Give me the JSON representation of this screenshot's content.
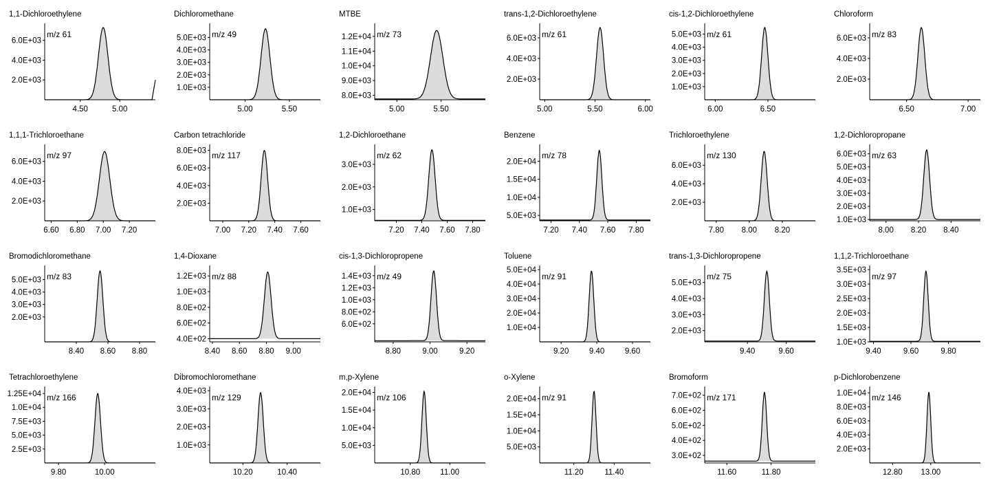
{
  "colors": {
    "peak_fill": "#dcdcdc",
    "line": "#000000",
    "baseline_fill": "#c8c8c8"
  },
  "chart_data": [
    {
      "type": "line",
      "title": "1,1-Dichloroethylene",
      "ion": "m/z 61",
      "xlim": [
        4.05,
        5.45
      ],
      "ylim": [
        0,
        7300
      ],
      "x_ticks": [
        "4.50",
        "5.00"
      ],
      "x_tick_values": [
        4.5,
        5.0
      ],
      "y_ticks": [
        "2.0E+03",
        "4.0E+03",
        "6.0E+03"
      ],
      "y_tick_values": [
        2000,
        4000,
        6000
      ],
      "peaks": [
        {
          "rt": 4.79,
          "height": 7300,
          "width": 0.06,
          "filled": true
        }
      ],
      "baseline": 0,
      "end_rise": 2000
    },
    {
      "type": "line",
      "title": "Dichloromethane",
      "ion": "m/z 49",
      "xlim": [
        4.6,
        5.85
      ],
      "ylim": [
        0,
        5800
      ],
      "x_ticks": [
        "5.00",
        "5.50"
      ],
      "x_tick_values": [
        5.0,
        5.5
      ],
      "y_ticks": [
        "1.0E+03",
        "2.0E+03",
        "3.0E+03",
        "4.0E+03",
        "5.0E+03"
      ],
      "y_tick_values": [
        1000,
        2000,
        3000,
        4000,
        5000
      ],
      "peaks": [
        {
          "rt": 5.23,
          "height": 5700,
          "width": 0.05,
          "filled": true
        }
      ],
      "baseline": 0
    },
    {
      "type": "line",
      "title": "MTBE",
      "ion": "m/z 73",
      "xlim": [
        4.75,
        6.0
      ],
      "ylim": [
        7700,
        12600
      ],
      "x_ticks": [
        "5.00",
        "5.50"
      ],
      "x_tick_values": [
        5.0,
        5.5
      ],
      "y_ticks": [
        "8.0E+03",
        "9.0E+03",
        "1.0E+04",
        "1.1E+04",
        "1.2E+04"
      ],
      "y_tick_values": [
        8000,
        9000,
        10000,
        11000,
        12000
      ],
      "peaks": [
        {
          "rt": 5.45,
          "height": 12400,
          "width": 0.07,
          "filled": true
        }
      ],
      "baseline": 7750
    },
    {
      "type": "line",
      "title": "trans-1,2-Dichloroethylene",
      "ion": "m/z 61",
      "xlim": [
        4.95,
        6.05
      ],
      "ylim": [
        0,
        7000
      ],
      "x_ticks": [
        "5.00",
        "5.50",
        "6.00"
      ],
      "x_tick_values": [
        5.0,
        5.5,
        6.0
      ],
      "y_ticks": [
        "2.0E+03",
        "4.0E+03",
        "6.0E+03"
      ],
      "y_tick_values": [
        2000,
        4000,
        6000
      ],
      "peaks": [
        {
          "rt": 5.55,
          "height": 7000,
          "width": 0.035,
          "filled": true
        }
      ],
      "baseline": 0
    },
    {
      "type": "line",
      "title": "cis-1,2-Dichloroethylene",
      "ion": "m/z 61",
      "xlim": [
        5.9,
        6.95
      ],
      "ylim": [
        0,
        5500
      ],
      "x_ticks": [
        "6.00",
        "6.50"
      ],
      "x_tick_values": [
        6.0,
        6.5
      ],
      "y_ticks": [
        "1.0E+03",
        "2.0E+03",
        "3.0E+03",
        "4.0E+03",
        "5.0E+03"
      ],
      "y_tick_values": [
        1000,
        2000,
        3000,
        4000,
        5000
      ],
      "peaks": [
        {
          "rt": 6.47,
          "height": 5500,
          "width": 0.03,
          "filled": true
        }
      ],
      "baseline": 0
    },
    {
      "type": "line",
      "title": "Chloroform",
      "ion": "m/z 83",
      "xlim": [
        6.2,
        7.1
      ],
      "ylim": [
        0,
        7000
      ],
      "x_ticks": [
        "6.50",
        "7.00"
      ],
      "x_tick_values": [
        6.5,
        7.0
      ],
      "y_ticks": [
        "2.0E+03",
        "4.0E+03",
        "6.0E+03"
      ],
      "y_tick_values": [
        2000,
        4000,
        6000
      ],
      "peaks": [
        {
          "rt": 6.62,
          "height": 7000,
          "width": 0.028,
          "filled": true
        }
      ],
      "baseline": 0
    },
    {
      "type": "line",
      "title": "1,1,1-Trichloroethane",
      "ion": "m/z 97",
      "xlim": [
        6.55,
        7.4
      ],
      "ylim": [
        0,
        7300
      ],
      "x_ticks": [
        "6.60",
        "6.80",
        "7.00",
        "7.20"
      ],
      "x_tick_values": [
        6.6,
        6.8,
        7.0,
        7.2
      ],
      "y_ticks": [
        "2.0E+03",
        "4.0E+03",
        "6.0E+03"
      ],
      "y_tick_values": [
        2000,
        4000,
        6000
      ],
      "peaks": [
        {
          "rt": 7.01,
          "height": 7000,
          "width": 0.04,
          "filled": true
        }
      ],
      "baseline": 0
    },
    {
      "type": "line",
      "title": "Carbon tetrachloride",
      "ion": "m/z 117",
      "xlim": [
        6.9,
        7.75
      ],
      "ylim": [
        0,
        8200
      ],
      "x_ticks": [
        "7.00",
        "7.20",
        "7.40",
        "7.60"
      ],
      "x_tick_values": [
        7.0,
        7.2,
        7.4,
        7.6
      ],
      "y_ticks": [
        "2.0E+03",
        "4.0E+03",
        "6.0E+03",
        "8.0E+03"
      ],
      "y_tick_values": [
        2000,
        4000,
        6000,
        8000
      ],
      "peaks": [
        {
          "rt": 7.32,
          "height": 8000,
          "width": 0.025,
          "filled": true
        }
      ],
      "baseline": 0
    },
    {
      "type": "line",
      "title": "1,2-Dichloroethane",
      "ion": "m/z 62",
      "xlim": [
        7.03,
        7.9
      ],
      "ylim": [
        500,
        3700
      ],
      "x_ticks": [
        "7.20",
        "7.40",
        "7.60",
        "7.80"
      ],
      "x_tick_values": [
        7.2,
        7.4,
        7.6,
        7.8
      ],
      "y_ticks": [
        "1.0E+03",
        "2.0E+03",
        "3.0E+03"
      ],
      "y_tick_values": [
        1000,
        2000,
        3000
      ],
      "peaks": [
        {
          "rt": 7.48,
          "height": 3650,
          "width": 0.025,
          "filled": true
        }
      ],
      "baseline": 520
    },
    {
      "type": "line",
      "title": "Benzene",
      "ion": "m/z 78",
      "xlim": [
        7.12,
        7.9
      ],
      "ylim": [
        3500,
        23500
      ],
      "x_ticks": [
        "7.20",
        "7.40",
        "7.60",
        "7.80"
      ],
      "x_tick_values": [
        7.2,
        7.4,
        7.6,
        7.8
      ],
      "y_ticks": [
        "5.0E+03",
        "1.0E+04",
        "1.5E+04",
        "2.0E+04"
      ],
      "y_tick_values": [
        5000,
        10000,
        15000,
        20000
      ],
      "peaks": [
        {
          "rt": 7.54,
          "height": 23000,
          "width": 0.018,
          "filled": true
        }
      ],
      "baseline": 3700
    },
    {
      "type": "line",
      "title": "Trichloroethylene",
      "ion": "m/z 130",
      "xlim": [
        7.73,
        8.4
      ],
      "ylim": [
        0,
        7800
      ],
      "x_ticks": [
        "7.80",
        "8.00",
        "8.20"
      ],
      "x_tick_values": [
        7.8,
        8.0,
        8.2
      ],
      "y_ticks": [
        "2.0E+03",
        "4.0E+03",
        "6.0E+03"
      ],
      "y_tick_values": [
        2000,
        4000,
        6000
      ],
      "peaks": [
        {
          "rt": 8.09,
          "height": 7500,
          "width": 0.018,
          "filled": true
        }
      ],
      "baseline": 0
    },
    {
      "type": "line",
      "title": "1,2-Dichloropropane",
      "ion": "m/z 63",
      "xlim": [
        7.9,
        8.58
      ],
      "ylim": [
        900,
        6400
      ],
      "x_ticks": [
        "8.00",
        "8.20",
        "8.40"
      ],
      "x_tick_values": [
        8.0,
        8.2,
        8.4
      ],
      "y_ticks": [
        "1.0E+03",
        "2.0E+03",
        "3.0E+03",
        "4.0E+03",
        "5.0E+03",
        "6.0E+03"
      ],
      "y_tick_values": [
        1000,
        2000,
        3000,
        4000,
        5000,
        6000
      ],
      "peaks": [
        {
          "rt": 8.25,
          "height": 6300,
          "width": 0.018,
          "filled": true
        }
      ],
      "baseline": 1000
    },
    {
      "type": "line",
      "title": "Bromodichloromethane",
      "ion": "m/z 83",
      "xlim": [
        8.2,
        8.9
      ],
      "ylim": [
        0,
        5800
      ],
      "x_ticks": [
        "8.40",
        "8.60",
        "8.80"
      ],
      "x_tick_values": [
        8.4,
        8.6,
        8.8
      ],
      "y_ticks": [
        "2.0E+03",
        "3.0E+03",
        "4.0E+03",
        "5.0E+03"
      ],
      "y_tick_values": [
        2000,
        3000,
        4000,
        5000
      ],
      "peaks": [
        {
          "rt": 8.55,
          "height": 5700,
          "width": 0.018,
          "filled": true
        }
      ],
      "baseline": 0
    },
    {
      "type": "line",
      "title": "1,4-Dioxane",
      "ion": "m/z 88",
      "xlim": [
        8.38,
        9.2
      ],
      "ylim": [
        360,
        1280
      ],
      "x_ticks": [
        "8.40",
        "8.60",
        "8.80",
        "9.00"
      ],
      "x_tick_values": [
        8.4,
        8.6,
        8.8,
        9.0
      ],
      "y_ticks": [
        "4.0E+02",
        "6.0E+02",
        "8.0E+02",
        "1.0E+03",
        "1.2E+03"
      ],
      "y_tick_values": [
        400,
        600,
        800,
        1000,
        1200
      ],
      "peaks": [
        {
          "rt": 8.81,
          "height": 1250,
          "width": 0.025,
          "filled": true
        }
      ],
      "baseline": 400
    },
    {
      "type": "line",
      "title": "cis-1,3-Dichloropropene",
      "ion": "m/z 49",
      "xlim": [
        8.7,
        9.3
      ],
      "ylim": [
        300,
        1500
      ],
      "x_ticks": [
        "8.80",
        "9.00",
        "9.20"
      ],
      "x_tick_values": [
        8.8,
        9.0,
        9.2
      ],
      "y_ticks": [
        "6.0E+02",
        "8.0E+02",
        "1.0E+03",
        "1.2E+03",
        "1.4E+03"
      ],
      "y_tick_values": [
        600,
        800,
        1000,
        1200,
        1400
      ],
      "peaks": [
        {
          "rt": 9.02,
          "height": 1480,
          "width": 0.015,
          "filled": true
        }
      ],
      "baseline": 320
    },
    {
      "type": "line",
      "title": "Toluene",
      "ion": "m/z 91",
      "xlim": [
        9.08,
        9.7
      ],
      "ylim": [
        0,
        50000
      ],
      "x_ticks": [
        "9.20",
        "9.40",
        "9.60"
      ],
      "x_tick_values": [
        9.2,
        9.4,
        9.6
      ],
      "y_ticks": [
        "1.0E+04",
        "2.0E+04",
        "3.0E+04",
        "4.0E+04",
        "5.0E+04"
      ],
      "y_tick_values": [
        10000,
        20000,
        30000,
        40000,
        50000
      ],
      "peaks": [
        {
          "rt": 9.37,
          "height": 49000,
          "width": 0.013,
          "filled": true
        }
      ],
      "baseline": 0
    },
    {
      "type": "line",
      "title": "trans-1,3-Dichloropropene",
      "ion": "m/z 75",
      "xlim": [
        9.18,
        9.75
      ],
      "ylim": [
        1300,
        5800
      ],
      "x_ticks": [
        "9.40",
        "9.60"
      ],
      "x_tick_values": [
        9.4,
        9.6
      ],
      "y_ticks": [
        "2.0E+03",
        "3.0E+03",
        "4.0E+03",
        "5.0E+03"
      ],
      "y_tick_values": [
        2000,
        3000,
        4000,
        5000
      ],
      "peaks": [
        {
          "rt": 9.5,
          "height": 5700,
          "width": 0.013,
          "filled": true
        }
      ],
      "baseline": 1350
    },
    {
      "type": "line",
      "title": "1,1,2-Trichloroethane",
      "ion": "m/z 97",
      "xlim": [
        9.38,
        9.97
      ],
      "ylim": [
        1000,
        3500
      ],
      "x_ticks": [
        "9.40",
        "9.60",
        "9.80"
      ],
      "x_tick_values": [
        9.4,
        9.6,
        9.8
      ],
      "y_ticks": [
        "1.0E+03",
        "1.5E+03",
        "2.0E+03",
        "2.5E+03",
        "3.0E+03",
        "3.5E+03"
      ],
      "y_tick_values": [
        1000,
        1500,
        2000,
        2500,
        3000,
        3500
      ],
      "peaks": [
        {
          "rt": 9.68,
          "height": 3450,
          "width": 0.012,
          "filled": true
        }
      ],
      "baseline": 1020
    },
    {
      "type": "line",
      "title": "Tetrachloroethylene",
      "ion": "m/z 166",
      "xlim": [
        9.74,
        10.22
      ],
      "ylim": [
        0,
        13000
      ],
      "x_ticks": [
        "9.80",
        "10.00"
      ],
      "x_tick_values": [
        9.8,
        10.0
      ],
      "y_ticks": [
        "2.5E+03",
        "5.0E+03",
        "7.5E+03",
        "1.0E+04",
        "1.25E+04"
      ],
      "y_tick_values": [
        2500,
        5000,
        7500,
        10000,
        12500
      ],
      "peaks": [
        {
          "rt": 9.97,
          "height": 12500,
          "width": 0.012,
          "filled": true
        }
      ],
      "baseline": 0
    },
    {
      "type": "line",
      "title": "Dibromochloromethane",
      "ion": "m/z 129",
      "xlim": [
        10.05,
        10.55
      ],
      "ylim": [
        0,
        4000
      ],
      "x_ticks": [
        "10.20",
        "10.40"
      ],
      "x_tick_values": [
        10.2,
        10.4
      ],
      "y_ticks": [
        "1.0E+03",
        "2.0E+03",
        "3.0E+03",
        "4.0E+03"
      ],
      "y_tick_values": [
        1000,
        2000,
        3000,
        4000
      ],
      "peaks": [
        {
          "rt": 10.28,
          "height": 3900,
          "width": 0.012,
          "filled": true
        }
      ],
      "baseline": 0
    },
    {
      "type": "line",
      "title": "m,p-Xylene",
      "ion": "m/z 106",
      "xlim": [
        10.62,
        11.18
      ],
      "ylim": [
        0,
        20500
      ],
      "x_ticks": [
        "10.80",
        "11.00"
      ],
      "x_tick_values": [
        10.8,
        11.0
      ],
      "y_ticks": [
        "5.0E+03",
        "1.0E+04",
        "1.5E+04",
        "2.0E+04"
      ],
      "y_tick_values": [
        5000,
        10000,
        15000,
        20000
      ],
      "peaks": [
        {
          "rt": 10.87,
          "height": 20300,
          "width": 0.011,
          "filled": true
        }
      ],
      "baseline": 0
    },
    {
      "type": "line",
      "title": "o-Xylene",
      "ion": "m/z 91",
      "xlim": [
        11.03,
        11.58
      ],
      "ylim": [
        0,
        22500
      ],
      "x_ticks": [
        "11.20",
        "11.40"
      ],
      "x_tick_values": [
        11.2,
        11.4
      ],
      "y_ticks": [
        "5.0E+03",
        "1.0E+04",
        "1.5E+04",
        "2.0E+04"
      ],
      "y_tick_values": [
        5000,
        10000,
        15000,
        20000
      ],
      "peaks": [
        {
          "rt": 11.3,
          "height": 22300,
          "width": 0.01,
          "filled": true
        }
      ],
      "baseline": 0
    },
    {
      "type": "line",
      "title": "Bromoform",
      "ion": "m/z 171",
      "xlim": [
        11.5,
        12.0
      ],
      "ylim": [
        250,
        730
      ],
      "x_ticks": [
        "11.60",
        "11.80"
      ],
      "x_tick_values": [
        11.6,
        11.8
      ],
      "y_ticks": [
        "3.0E+02",
        "4.0E+02",
        "5.0E+02",
        "6.0E+02",
        "7.0E+02"
      ],
      "y_tick_values": [
        300,
        400,
        500,
        600,
        700
      ],
      "peaks": [
        {
          "rt": 11.77,
          "height": 720,
          "width": 0.01,
          "filled": true
        }
      ],
      "baseline": 262
    },
    {
      "type": "line",
      "title": "p-Dichlorobenzene",
      "ion": "m/z 146",
      "xlim": [
        12.68,
        13.26
      ],
      "ylim": [
        0,
        10300
      ],
      "x_ticks": [
        "12.80",
        "13.00"
      ],
      "x_tick_values": [
        12.8,
        13.0
      ],
      "y_ticks": [
        "2.0E+03",
        "4.0E+03",
        "6.0E+03",
        "8.0E+03",
        "1.0E+04"
      ],
      "y_tick_values": [
        2000,
        4000,
        6000,
        8000,
        10000
      ],
      "peaks": [
        {
          "rt": 12.99,
          "height": 10100,
          "width": 0.01,
          "filled": true
        }
      ],
      "baseline": 0
    }
  ]
}
